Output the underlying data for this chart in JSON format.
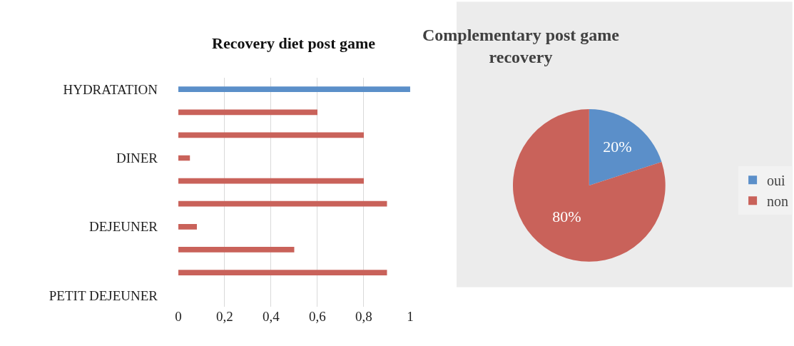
{
  "chart_data": [
    {
      "type": "bar",
      "orientation": "horizontal",
      "title": "Recovery diet post game",
      "categories": [
        "HYDRATATION",
        null,
        null,
        "DINER",
        null,
        null,
        "DEJEUNER",
        null,
        null,
        "PETIT DEJEUNER"
      ],
      "series": [
        {
          "color": "#5b8fc9",
          "values": [
            1,
            null,
            null,
            null,
            null,
            null,
            null,
            null,
            null,
            null
          ]
        },
        {
          "color": "#c9625a",
          "values": [
            null,
            0.6,
            0.8,
            0.05,
            0.8,
            0.9,
            0.08,
            0.5,
            0.9,
            null
          ]
        }
      ],
      "xlim": [
        0,
        1
      ],
      "xticks": [
        0,
        {
          "value": 0.2,
          "label": "0,2"
        },
        {
          "value": 0.4,
          "label": "0,4"
        },
        {
          "value": 0.6,
          "label": "0,6"
        },
        {
          "value": 0.8,
          "label": "0,8"
        },
        1
      ],
      "grid": "x",
      "legend": false
    },
    {
      "type": "pie",
      "title": "Complementary post game recovery",
      "categories": [
        "oui",
        "non"
      ],
      "values": [
        20,
        80
      ],
      "colors": [
        "#5b8fc9",
        "#c9625a"
      ],
      "value_labels": [
        "20%",
        "80%"
      ],
      "legend": "right"
    }
  ]
}
